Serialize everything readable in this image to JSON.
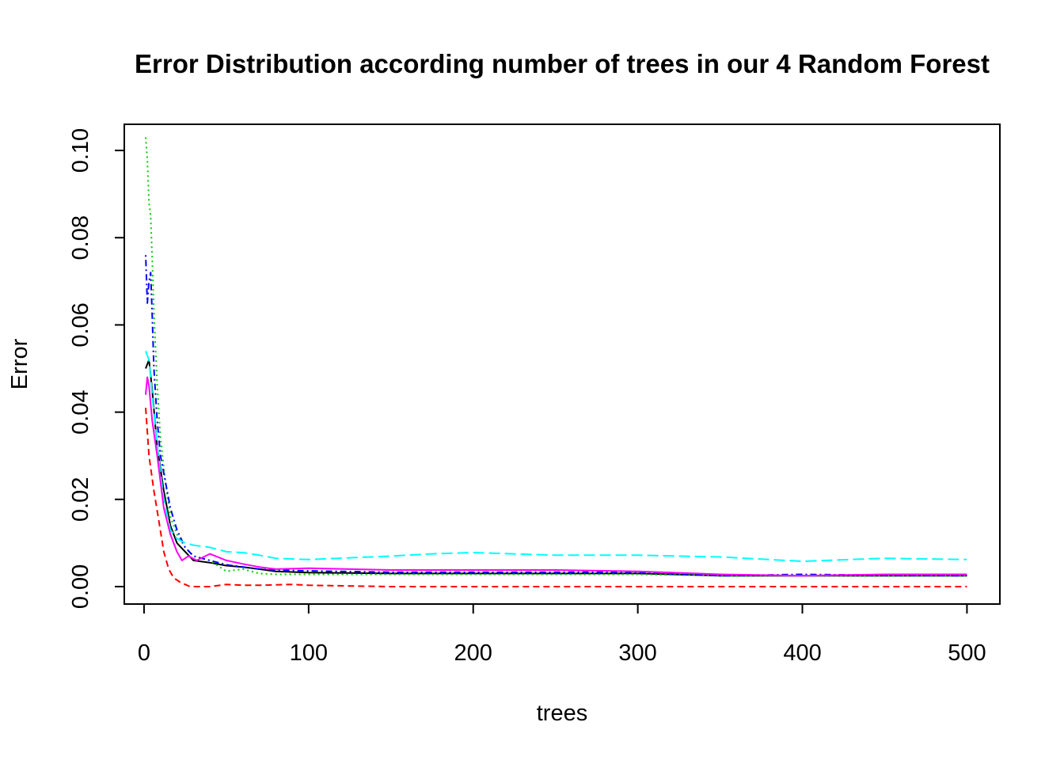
{
  "chart_data": {
    "type": "line",
    "title": "Error Distribution according number of trees in our 4 Random Forest",
    "xlabel": "trees",
    "ylabel": "Error",
    "xlim": [
      -12,
      520
    ],
    "ylim": [
      -0.004,
      0.106
    ],
    "x_ticks": [
      0,
      100,
      200,
      300,
      400,
      500
    ],
    "y_ticks": [
      0.0,
      0.02,
      0.04,
      0.06,
      0.08,
      0.1
    ],
    "x_tick_labels": [
      "0",
      "100",
      "200",
      "300",
      "400",
      "500"
    ],
    "y_tick_labels": [
      "0.00",
      "0.02",
      "0.04",
      "0.06",
      "0.08",
      "0.10"
    ],
    "grid": false,
    "legend": "none",
    "series": [
      {
        "color": "#000000",
        "dash": "solid",
        "points": [
          [
            1,
            0.05
          ],
          [
            3,
            0.052
          ],
          [
            5,
            0.045
          ],
          [
            8,
            0.032
          ],
          [
            12,
            0.022
          ],
          [
            16,
            0.014
          ],
          [
            20,
            0.01
          ],
          [
            25,
            0.008
          ],
          [
            30,
            0.006
          ],
          [
            40,
            0.0055
          ],
          [
            50,
            0.0048
          ],
          [
            60,
            0.0045
          ],
          [
            70,
            0.004
          ],
          [
            80,
            0.0035
          ],
          [
            100,
            0.0032
          ],
          [
            150,
            0.003
          ],
          [
            200,
            0.003
          ],
          [
            250,
            0.003
          ],
          [
            300,
            0.003
          ],
          [
            350,
            0.0025
          ],
          [
            400,
            0.0025
          ],
          [
            450,
            0.0025
          ],
          [
            500,
            0.0025
          ]
        ]
      },
      {
        "color": "#ff0000",
        "dash": "dashed",
        "points": [
          [
            1,
            0.041
          ],
          [
            3,
            0.03
          ],
          [
            6,
            0.022
          ],
          [
            9,
            0.015
          ],
          [
            12,
            0.008
          ],
          [
            15,
            0.004
          ],
          [
            18,
            0.002
          ],
          [
            22,
            0.001
          ],
          [
            28,
            0.0
          ],
          [
            40,
            0.0
          ],
          [
            50,
            0.0005
          ],
          [
            60,
            0.0003
          ],
          [
            70,
            0.0003
          ],
          [
            90,
            0.0005
          ],
          [
            100,
            0.0003
          ],
          [
            150,
            0.0
          ],
          [
            200,
            0.0
          ],
          [
            250,
            0.0
          ],
          [
            300,
            0.0
          ],
          [
            350,
            0.0
          ],
          [
            400,
            0.0
          ],
          [
            450,
            0.0
          ],
          [
            500,
            0.0
          ]
        ]
      },
      {
        "color": "#00cd00",
        "dash": "dotted",
        "points": [
          [
            1,
            0.103
          ],
          [
            2,
            0.098
          ],
          [
            3,
            0.088
          ],
          [
            4,
            0.085
          ],
          [
            5,
            0.075
          ],
          [
            6,
            0.063
          ],
          [
            8,
            0.046
          ],
          [
            10,
            0.034
          ],
          [
            13,
            0.024
          ],
          [
            16,
            0.016
          ],
          [
            20,
            0.012
          ],
          [
            25,
            0.009
          ],
          [
            30,
            0.007
          ],
          [
            40,
            0.006
          ],
          [
            50,
            0.0035
          ],
          [
            60,
            0.004
          ],
          [
            70,
            0.003
          ],
          [
            80,
            0.0028
          ],
          [
            100,
            0.0028
          ],
          [
            150,
            0.0028
          ],
          [
            200,
            0.0028
          ],
          [
            250,
            0.0028
          ],
          [
            300,
            0.0028
          ],
          [
            350,
            0.0025
          ],
          [
            400,
            0.0025
          ],
          [
            450,
            0.0025
          ],
          [
            500,
            0.0025
          ]
        ]
      },
      {
        "color": "#0000ff",
        "dash": "dotdash",
        "points": [
          [
            1,
            0.076
          ],
          [
            2,
            0.065
          ],
          [
            3,
            0.07
          ],
          [
            4,
            0.072
          ],
          [
            5,
            0.062
          ],
          [
            6,
            0.05
          ],
          [
            8,
            0.038
          ],
          [
            10,
            0.03
          ],
          [
            13,
            0.024
          ],
          [
            16,
            0.018
          ],
          [
            20,
            0.013
          ],
          [
            25,
            0.009
          ],
          [
            30,
            0.007
          ],
          [
            40,
            0.006
          ],
          [
            50,
            0.005
          ],
          [
            60,
            0.0045
          ],
          [
            70,
            0.004
          ],
          [
            80,
            0.0038
          ],
          [
            100,
            0.0036
          ],
          [
            150,
            0.0033
          ],
          [
            200,
            0.0033
          ],
          [
            250,
            0.0033
          ],
          [
            300,
            0.0033
          ],
          [
            350,
            0.0025
          ],
          [
            400,
            0.0028
          ],
          [
            450,
            0.0026
          ],
          [
            500,
            0.0025
          ]
        ]
      },
      {
        "color": "#00ffff",
        "dash": "longdash",
        "points": [
          [
            1,
            0.054
          ],
          [
            3,
            0.052
          ],
          [
            5,
            0.044
          ],
          [
            8,
            0.032
          ],
          [
            12,
            0.02
          ],
          [
            16,
            0.013
          ],
          [
            20,
            0.011
          ],
          [
            25,
            0.01
          ],
          [
            30,
            0.0095
          ],
          [
            40,
            0.009
          ],
          [
            50,
            0.008
          ],
          [
            60,
            0.0078
          ],
          [
            70,
            0.0072
          ],
          [
            80,
            0.0065
          ],
          [
            100,
            0.0062
          ],
          [
            150,
            0.007
          ],
          [
            175,
            0.0075
          ],
          [
            200,
            0.0078
          ],
          [
            250,
            0.0072
          ],
          [
            300,
            0.0072
          ],
          [
            350,
            0.0068
          ],
          [
            400,
            0.0058
          ],
          [
            450,
            0.0065
          ],
          [
            500,
            0.0062
          ]
        ]
      },
      {
        "color": "#ff00ff",
        "dash": "solid",
        "points": [
          [
            1,
            0.044
          ],
          [
            2,
            0.048
          ],
          [
            3,
            0.046
          ],
          [
            5,
            0.038
          ],
          [
            8,
            0.03
          ],
          [
            12,
            0.018
          ],
          [
            16,
            0.012
          ],
          [
            20,
            0.008
          ],
          [
            23,
            0.006
          ],
          [
            27,
            0.007
          ],
          [
            32,
            0.006
          ],
          [
            40,
            0.0075
          ],
          [
            50,
            0.006
          ],
          [
            60,
            0.0052
          ],
          [
            70,
            0.0045
          ],
          [
            80,
            0.004
          ],
          [
            100,
            0.0042
          ],
          [
            150,
            0.0038
          ],
          [
            200,
            0.0038
          ],
          [
            250,
            0.0038
          ],
          [
            300,
            0.0035
          ],
          [
            350,
            0.0028
          ],
          [
            400,
            0.0025
          ],
          [
            450,
            0.0028
          ],
          [
            500,
            0.0028
          ]
        ]
      }
    ]
  }
}
